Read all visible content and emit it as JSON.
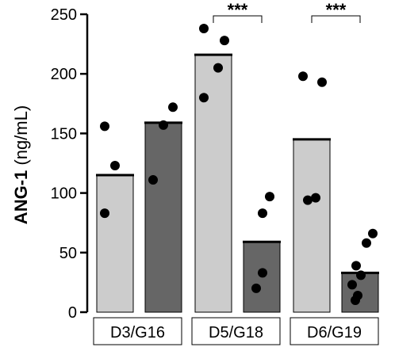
{
  "chart_data": {
    "type": "bar",
    "ylabel_bold": "ANG-1",
    "ylabel_unit": " (ng/mL)",
    "ylim": [
      0,
      250
    ],
    "yticks": [
      0,
      50,
      100,
      150,
      200,
      250
    ],
    "ytick_labels": [
      "0",
      "50",
      "100",
      "150",
      "200",
      "250"
    ],
    "grid": false,
    "legend": "none",
    "groups": [
      "D3/G16",
      "D5/G18",
      "D6/G19"
    ],
    "bars": [
      {
        "group": "D3/G16",
        "value": 115,
        "color": "#cccccc",
        "points": [
          156,
          123,
          83
        ]
      },
      {
        "group": "D3/G16",
        "value": 159,
        "color": "#666666",
        "points": [
          172,
          157,
          111
        ]
      },
      {
        "group": "D5/G18",
        "value": 216,
        "color": "#cccccc",
        "points": [
          238,
          228,
          205,
          180
        ]
      },
      {
        "group": "D5/G18",
        "value": 59,
        "color": "#666666",
        "points": [
          97,
          83,
          33,
          20
        ]
      },
      {
        "group": "D6/G19",
        "value": 145,
        "color": "#cccccc",
        "points": [
          198,
          193,
          96,
          94
        ]
      },
      {
        "group": "D6/G19",
        "value": 33,
        "color": "#666666",
        "points": [
          66,
          58,
          39,
          31,
          23,
          14,
          10
        ]
      }
    ],
    "significance": [
      {
        "group": "D5/G18",
        "label": "***"
      },
      {
        "group": "D6/G19",
        "label": "***"
      }
    ]
  }
}
